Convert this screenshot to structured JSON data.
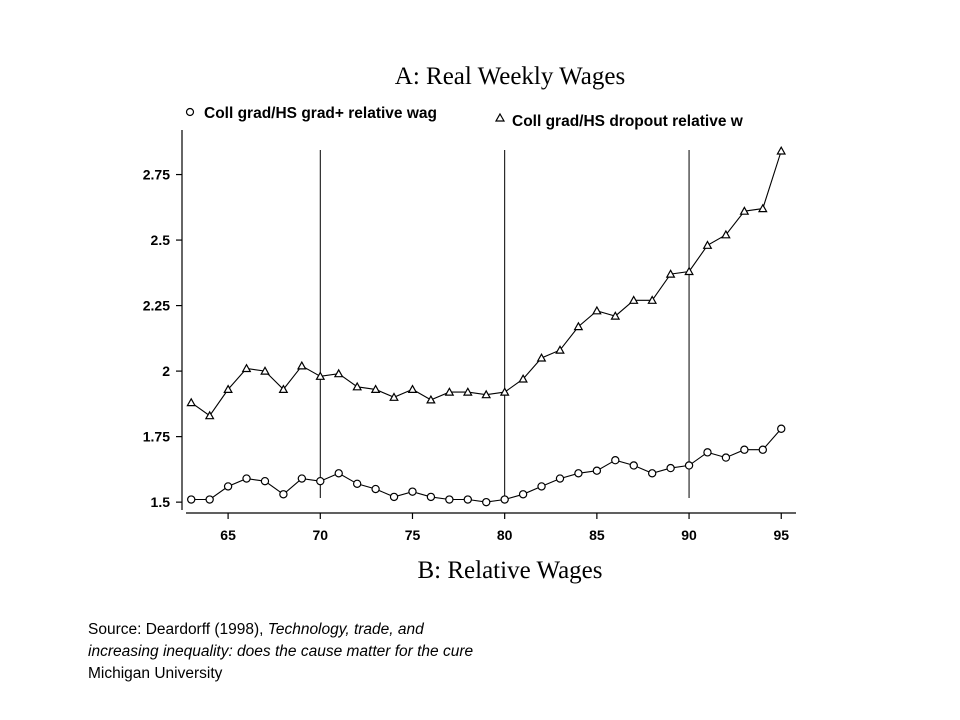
{
  "source_note": {
    "prefix": "Source: Deardorff (1998), ",
    "title_part1": "Technology, trade, and",
    "title_part2": "increasing inequality: does the cause matter for the cure",
    "publisher": "Michigan University"
  },
  "chart_data": {
    "type": "line",
    "title": "A:  Real Weekly Wages",
    "subtitle": "B:  Relative Wages",
    "xlabel": "",
    "ylabel": "",
    "xlim": [
      1962.5,
      1995.8
    ],
    "ylim": [
      1.47,
      2.92
    ],
    "x_ticks": [
      65,
      70,
      75,
      80,
      85,
      90,
      95
    ],
    "y_ticks": [
      1.5,
      1.75,
      2,
      2.25,
      2.5,
      2.75
    ],
    "y_tick_labels": [
      "1.5",
      "1.75",
      "2",
      "2.25",
      "2.5",
      "2.75"
    ],
    "vertical_lines": [
      70,
      80,
      90
    ],
    "grid": false,
    "legend_position": "top",
    "x": [
      63,
      64,
      65,
      66,
      67,
      68,
      69,
      70,
      71,
      72,
      73,
      74,
      75,
      76,
      77,
      78,
      79,
      80,
      81,
      82,
      83,
      84,
      85,
      86,
      87,
      88,
      89,
      90,
      91,
      92,
      93,
      94,
      95
    ],
    "series": [
      {
        "name": "Coll grad/HS grad+ relative wag",
        "marker": "circle",
        "values": [
          1.51,
          1.51,
          1.56,
          1.59,
          1.58,
          1.53,
          1.59,
          1.58,
          1.61,
          1.57,
          1.55,
          1.52,
          1.54,
          1.52,
          1.51,
          1.51,
          1.5,
          1.51,
          1.53,
          1.56,
          1.59,
          1.61,
          1.62,
          1.66,
          1.64,
          1.61,
          1.63,
          1.64,
          1.69,
          1.67,
          1.7,
          1.7,
          1.78
        ]
      },
      {
        "name": "Coll grad/HS dropout relative w",
        "marker": "triangle",
        "values": [
          1.88,
          1.83,
          1.93,
          2.01,
          2.0,
          1.93,
          2.02,
          1.98,
          1.99,
          1.94,
          1.93,
          1.9,
          1.93,
          1.89,
          1.92,
          1.92,
          1.91,
          1.92,
          1.97,
          2.05,
          2.08,
          2.17,
          2.23,
          2.21,
          2.27,
          2.27,
          2.37,
          2.38,
          2.48,
          2.52,
          2.61,
          2.62,
          2.84
        ]
      }
    ]
  }
}
